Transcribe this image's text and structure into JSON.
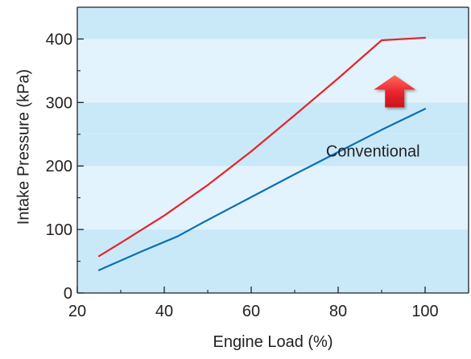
{
  "chart_data": {
    "type": "line",
    "xlabel": "Engine Load (%)",
    "ylabel": "Intake Pressure (kPa)",
    "xlim": [
      20,
      110
    ],
    "ylim": [
      0,
      450
    ],
    "x_ticks": [
      20,
      40,
      60,
      80,
      100
    ],
    "y_ticks": [
      0,
      100,
      200,
      300,
      400
    ],
    "grid": false,
    "background": "horizontal alternating light-blue bands every 50 kPa",
    "colors": {
      "band_light": "#e2f3fd",
      "band_dark": "#c9e9f9",
      "axis": "#231f20",
      "arrow": "#e8232a"
    },
    "series": [
      {
        "name": "",
        "color": "#e8232a",
        "points": [
          [
            25,
            58
          ],
          [
            30,
            79
          ],
          [
            40,
            122
          ],
          [
            50,
            170
          ],
          [
            60,
            223
          ],
          [
            70,
            280
          ],
          [
            80,
            338
          ],
          [
            90,
            398
          ],
          [
            100,
            402
          ]
        ]
      },
      {
        "name": "Conventional",
        "color": "#0a6fb7",
        "points": [
          [
            25,
            36
          ],
          [
            35,
            66
          ],
          [
            43,
            89
          ],
          [
            50,
            115
          ],
          [
            60,
            151
          ],
          [
            70,
            187
          ],
          [
            80,
            222
          ],
          [
            90,
            257
          ],
          [
            100,
            290
          ]
        ]
      }
    ],
    "annotations": [
      {
        "type": "text",
        "text": "Conventional",
        "x": 88,
        "y": 215
      },
      {
        "type": "arrow",
        "direction": "up",
        "x": 93,
        "y": 310
      }
    ]
  }
}
